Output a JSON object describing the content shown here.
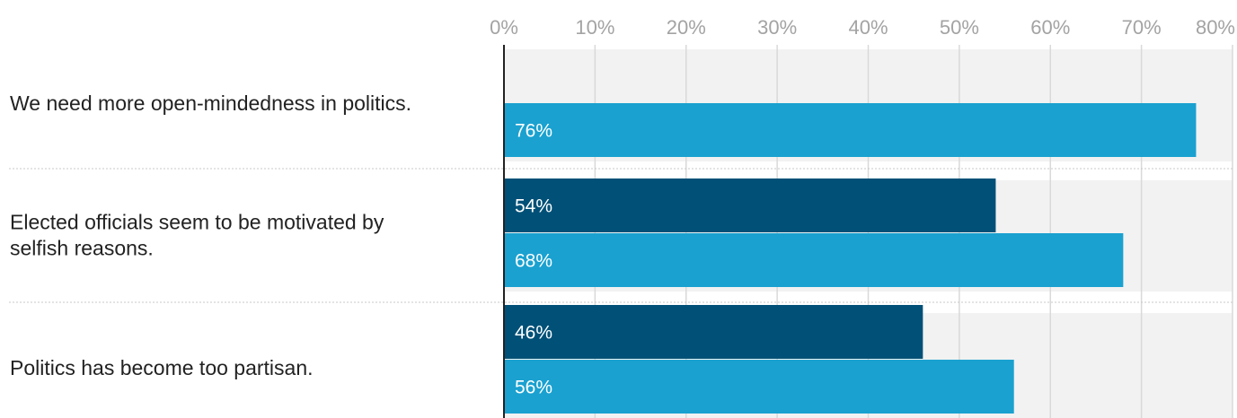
{
  "chart_data": {
    "type": "bar",
    "orientation": "horizontal",
    "title": "",
    "xlabel": "",
    "ylabel": "",
    "xlim": [
      0,
      80
    ],
    "ticks": [
      0,
      10,
      20,
      30,
      40,
      50,
      60,
      70,
      80
    ],
    "tick_labels": [
      "0%",
      "10%",
      "20%",
      "30%",
      "40%",
      "50%",
      "60%",
      "70%",
      "80%"
    ],
    "grid": true,
    "legend": "none",
    "categories": [
      [
        "We need more open-mindedness in politics."
      ],
      [
        "Elected officials seem to be motivated by",
        "selfish reasons."
      ],
      [
        "Politics has become too partisan."
      ]
    ],
    "series": [
      {
        "color": "#005077",
        "values": [
          null,
          54,
          46
        ],
        "labels": [
          "",
          "54%",
          "46%"
        ]
      },
      {
        "color": "#1aa1d0",
        "values": [
          76,
          68,
          56
        ],
        "labels": [
          "76%",
          "68%",
          "56%"
        ]
      }
    ]
  }
}
